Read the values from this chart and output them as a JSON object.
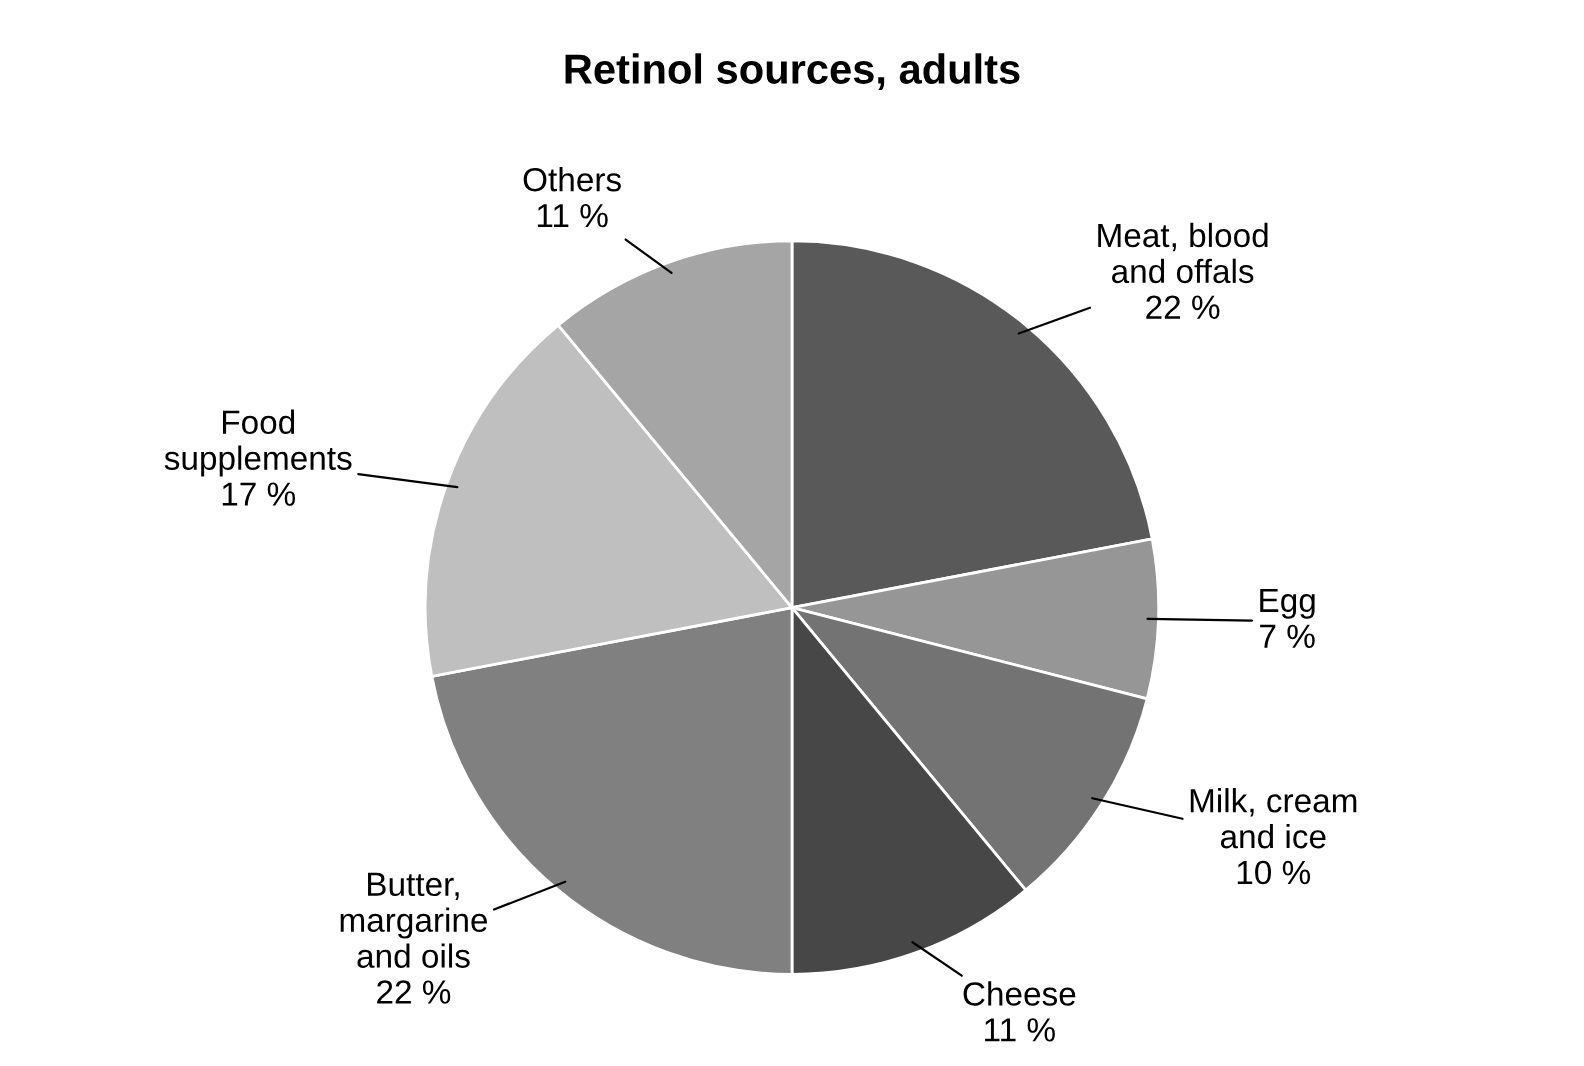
{
  "chart_data": {
    "type": "pie",
    "title": "Retinol sources, adults",
    "categories": [
      "Meat, blood\nand offals",
      "Egg",
      "Milk, cream\nand ice",
      "Cheese",
      "Butter,\nmargarine\nand oils",
      "Food\nsupplements",
      "Others"
    ],
    "values": [
      22,
      7,
      10,
      11,
      22,
      17,
      11
    ],
    "value_labels": [
      "22 %",
      "7 %",
      "10 %",
      "11 %",
      "22 %",
      "17 %",
      "11 %"
    ],
    "colors": [
      "#595959",
      "#969696",
      "#737373",
      "#474747",
      "#808080",
      "#bfbfbf",
      "#a5a5a5"
    ],
    "legend": false
  }
}
